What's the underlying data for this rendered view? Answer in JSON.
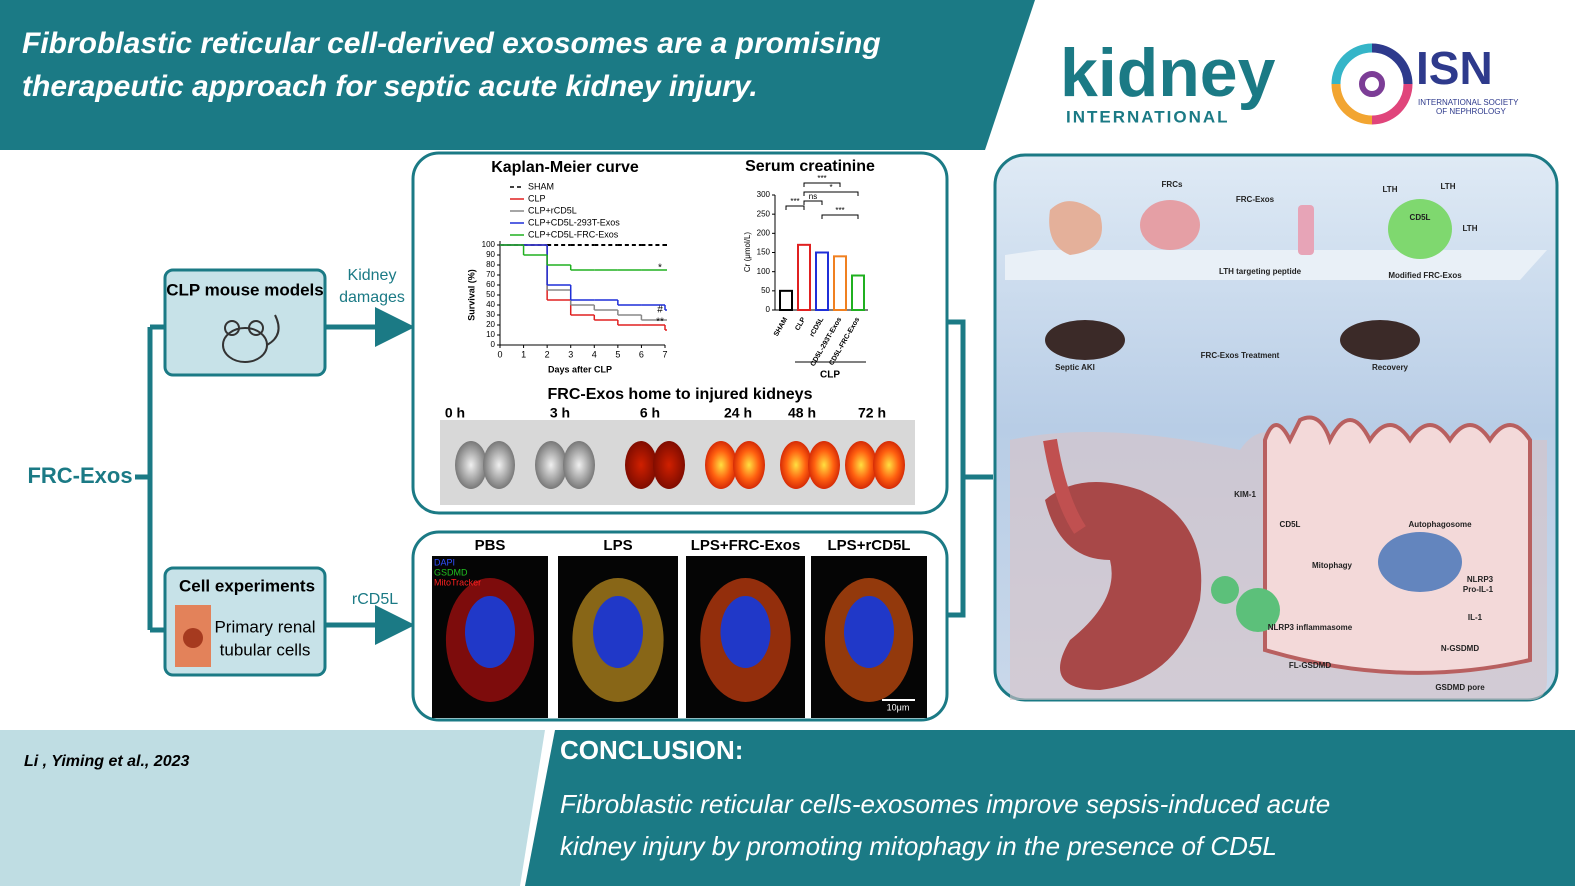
{
  "header": {
    "title_line1": "Fibroblastic reticular cell-derived exosomes are a promising",
    "title_line2": "therapeutic approach for septic acute kidney injury."
  },
  "logos": {
    "kidney": "kidney",
    "kidney_sub": "INTERNATIONAL",
    "isn": "ISN",
    "isn_sub1": "INTERNATIONAL SOCIETY",
    "isn_sub2": "OF NEPHROLOGY"
  },
  "flow": {
    "root": "FRC-Exos",
    "clp": "CLP mouse models",
    "arrow_top_1": "Kidney",
    "arrow_top_2": "damages",
    "cell": "Cell experiments",
    "cell_sub1": "Primary renal",
    "cell_sub2": "tubular cells",
    "arrow_bottom": "rCD5L"
  },
  "km": {
    "type": "line",
    "title": "Kaplan-Meier curve",
    "y_label": "Survival (%)",
    "x_label": "Days after CLP",
    "x": [
      0,
      1,
      2,
      3,
      4,
      5,
      6,
      7
    ],
    "xlim": [
      0,
      7
    ],
    "xticks": [
      0,
      1,
      2,
      3,
      4,
      5,
      6,
      7
    ],
    "ylim": [
      0,
      100
    ],
    "yticks": [
      0,
      10,
      20,
      30,
      40,
      50,
      60,
      70,
      80,
      90,
      100
    ],
    "series": [
      {
        "name": "SHAM",
        "color": "#000000",
        "values": [
          100,
          100,
          100,
          100,
          100,
          100,
          100,
          100
        ]
      },
      {
        "name": "CLP",
        "color": "#e02020",
        "values": [
          100,
          100,
          45,
          30,
          25,
          20,
          20,
          15
        ]
      },
      {
        "name": "CLP+rCD5L",
        "color": "#888888",
        "values": [
          100,
          100,
          55,
          40,
          35,
          30,
          25,
          25
        ]
      },
      {
        "name": "CLP+CD5L-293T-Exos",
        "color": "#1f2fd8",
        "values": [
          100,
          100,
          60,
          45,
          45,
          40,
          40,
          35
        ]
      },
      {
        "name": "CLP+CD5L-FRC-Exos",
        "color": "#20b020",
        "values": [
          100,
          90,
          80,
          75,
          75,
          75,
          75,
          75
        ]
      }
    ],
    "annotations": [
      "*",
      "#",
      "**"
    ]
  },
  "creatinine": {
    "type": "bar",
    "title": "Serum creatinine",
    "y_label": "Cr (μmol/L)",
    "ylim": [
      0,
      300
    ],
    "yticks": [
      0,
      50,
      100,
      150,
      200,
      250,
      300
    ],
    "categories": [
      "SHAM",
      "CLP",
      "rCD5L",
      "CD5L-293T-Exos",
      "CD5L-FRC-Exos"
    ],
    "values": [
      50,
      170,
      150,
      140,
      90
    ],
    "colors": [
      "#000000",
      "#e02020",
      "#1f2fd8",
      "#f08020",
      "#20b020"
    ],
    "significance": [
      "***",
      "ns",
      "*",
      "***",
      "***"
    ],
    "group": "CLP"
  },
  "imaging": {
    "title": "FRC-Exos home to injured kidneys",
    "timepoints": [
      "0 h",
      "3 h",
      "6 h",
      "24 h",
      "48 h",
      "72 h"
    ]
  },
  "cells": {
    "conditions": [
      "PBS",
      "LPS",
      "LPS+FRC-Exos",
      "LPS+rCD5L"
    ],
    "stains": [
      "DAPI",
      "GSDMD",
      "MitoTracker"
    ],
    "scale_bar": "10μm"
  },
  "mechanism": {
    "labels": [
      "FRCs",
      "FRC-Exos",
      "LTH",
      "LTH",
      "LTH",
      "CD5L",
      "LTH targeting peptide",
      "Modified FRC-Exos",
      "Septic AKI",
      "FRC-Exos Treatment",
      "Recovery",
      "KIM-1",
      "CD5L",
      "Autophagosome",
      "Mitophagy",
      "NLRP3",
      "Pro-IL-1",
      "IL-1",
      "NLRP3 inflammasome",
      "N-GSDMD",
      "FL-GSDMD",
      "GSDMD pore"
    ]
  },
  "footer": {
    "citation": "Li , Yiming et al., 2023",
    "conclusion_title": "CONCLUSION:",
    "conclusion_line1": "Fibroblastic reticular cells-exosomes improve sepsis-induced acute",
    "conclusion_line2": "kidney injury by promoting mitophagy in the presence of CD5L"
  }
}
